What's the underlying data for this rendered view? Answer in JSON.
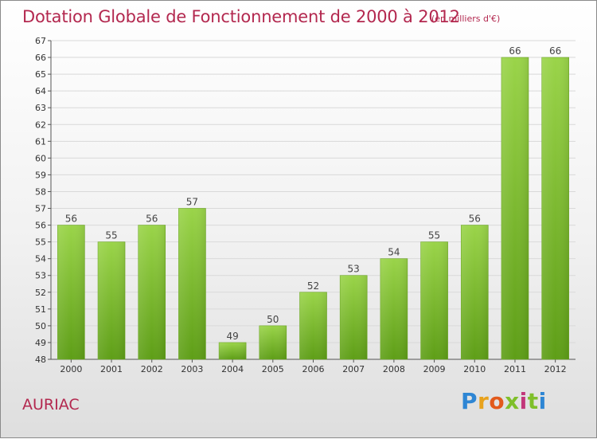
{
  "chart_data": {
    "type": "bar",
    "title": "Dotation Globale de Fonctionnement de 2000 à 2012",
    "subtitle": "(en milliers d'€)",
    "categories": [
      "2000",
      "2001",
      "2002",
      "2003",
      "2004",
      "2005",
      "2006",
      "2007",
      "2008",
      "2009",
      "2010",
      "2011",
      "2012"
    ],
    "values": [
      56,
      55,
      56,
      57,
      49,
      50,
      52,
      53,
      54,
      55,
      56,
      66,
      66
    ],
    "data_labels": [
      "56",
      "55",
      "56",
      "57",
      "49",
      "50",
      "52",
      "53",
      "54",
      "55",
      "56",
      "66",
      "66"
    ],
    "ylim": [
      48,
      67
    ],
    "yticks": [
      "48",
      "49",
      "50",
      "51",
      "52",
      "53",
      "54",
      "55",
      "56",
      "57",
      "58",
      "59",
      "60",
      "61",
      "62",
      "63",
      "64",
      "65",
      "66",
      "67"
    ],
    "grid": true,
    "bar_color": "#7cc22c",
    "xlabel": "",
    "ylabel": ""
  },
  "footer": {
    "commune": "AURIAC",
    "logo_text": "Proxiti"
  },
  "colors": {
    "title": "#b3284f",
    "grid": "#d9d9d9",
    "bar_top": "#9ad449",
    "bar_bottom": "#5e9e17"
  }
}
